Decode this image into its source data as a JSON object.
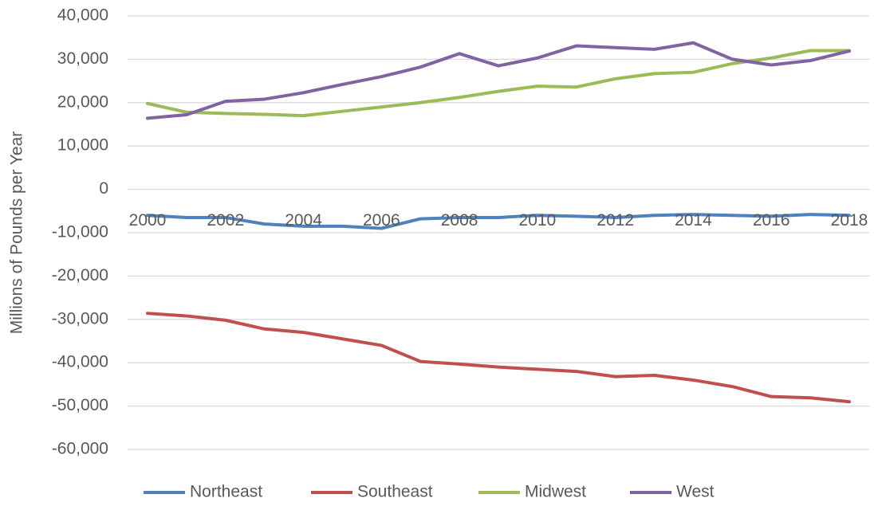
{
  "chart_data": {
    "type": "line",
    "y_label": "Millions of Pounds per Year",
    "x": [
      2000,
      2001,
      2002,
      2003,
      2004,
      2005,
      2006,
      2007,
      2008,
      2009,
      2010,
      2011,
      2012,
      2013,
      2014,
      2015,
      2016,
      2017,
      2018
    ],
    "xlim": [
      2000,
      2018
    ],
    "xticks": [
      2000,
      2002,
      2004,
      2006,
      2008,
      2010,
      2012,
      2014,
      2016,
      2018
    ],
    "ylim": [
      -60000,
      40000
    ],
    "yticks": [
      {
        "value": -60000,
        "label": "-60,000"
      },
      {
        "value": -50000,
        "label": "-50,000"
      },
      {
        "value": -40000,
        "label": "-40,000"
      },
      {
        "value": -30000,
        "label": "-30,000"
      },
      {
        "value": -20000,
        "label": "-20,000"
      },
      {
        "value": -10000,
        "label": "-10,000"
      },
      0,
      {
        "value": 10000,
        "label": "10,000"
      },
      {
        "value": 20000,
        "label": "20,000"
      },
      {
        "value": 30000,
        "label": "30,000"
      },
      {
        "value": 40000,
        "label": "40,000"
      }
    ],
    "grid": true,
    "legend": "bottom",
    "series": [
      {
        "name": "Northeast",
        "color": "#4f81bd",
        "values": [
          -6000,
          -6500,
          -6500,
          -8000,
          -8500,
          -8500,
          -9000,
          -6800,
          -6500,
          -6500,
          -6000,
          -6200,
          -6500,
          -6000,
          -5800,
          -6000,
          -6200,
          -5800,
          -6000
        ]
      },
      {
        "name": "Southeast",
        "color": "#c0504d",
        "values": [
          -28600,
          -29200,
          -30200,
          -32200,
          -33000,
          -34500,
          -36000,
          -39700,
          -40300,
          -41000,
          -41500,
          -42000,
          -43200,
          -42900,
          -44000,
          -45500,
          -47800,
          -48100,
          -49000
        ]
      },
      {
        "name": "Midwest",
        "color": "#9bbb59",
        "values": [
          19800,
          17800,
          17500,
          17300,
          17000,
          18000,
          19000,
          20000,
          21200,
          22600,
          23800,
          23600,
          25500,
          26700,
          27000,
          29000,
          30300,
          32000,
          32000
        ]
      },
      {
        "name": "West",
        "color": "#8064a2",
        "values": [
          16400,
          17200,
          20300,
          20800,
          22300,
          24200,
          26000,
          28200,
          31300,
          28500,
          30300,
          33100,
          32700,
          32300,
          33800,
          30000,
          28700,
          29700,
          31900
        ]
      }
    ]
  }
}
